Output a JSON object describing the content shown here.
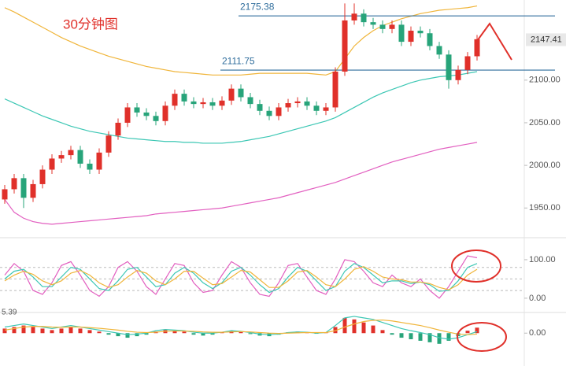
{
  "chart_data": [
    {
      "type": "candlestick",
      "title": "30分钟图",
      "up_color": "#e0302a",
      "down_color": "#27a47a",
      "ohlc": {
        "open": [
          1960,
          1972,
          1985,
          1962,
          1978,
          1995,
          2008,
          2012,
          2018,
          2002,
          1995,
          2015,
          2035,
          2050,
          2068,
          2062,
          2058,
          2052,
          2070,
          2084,
          2075,
          2072,
          2074,
          2070,
          2076,
          2090,
          2080,
          2072,
          2064,
          2058,
          2068,
          2073,
          2075,
          2070,
          2064,
          2068,
          2110,
          2170,
          2178,
          2168,
          2165,
          2160,
          2165,
          2145,
          2158,
          2155,
          2140,
          2130,
          2100,
          2112,
          2128
        ],
        "high": [
          1977,
          1990,
          1990,
          1983,
          2000,
          2013,
          2017,
          2023,
          2023,
          2007,
          2020,
          2040,
          2055,
          2073,
          2073,
          2067,
          2063,
          2075,
          2089,
          2089,
          2080,
          2079,
          2079,
          2081,
          2095,
          2095,
          2085,
          2077,
          2069,
          2073,
          2078,
          2080,
          2080,
          2075,
          2073,
          2115,
          2190,
          2190,
          2183,
          2173,
          2170,
          2170,
          2170,
          2163,
          2163,
          2160,
          2145,
          2135,
          2117,
          2133,
          2153
        ],
        "low": [
          1955,
          1967,
          1950,
          1957,
          1973,
          1990,
          2003,
          2007,
          1997,
          1990,
          1990,
          2010,
          2030,
          2045,
          2057,
          2053,
          2047,
          2047,
          2065,
          2070,
          2067,
          2067,
          2065,
          2065,
          2071,
          2075,
          2067,
          2059,
          2053,
          2053,
          2063,
          2068,
          2065,
          2059,
          2059,
          2063,
          2105,
          2165,
          2163,
          2160,
          2155,
          2155,
          2140,
          2140,
          2150,
          2135,
          2125,
          2090,
          2095,
          2107,
          2123
        ],
        "close": [
          1972,
          1985,
          1962,
          1978,
          1995,
          2008,
          2012,
          2018,
          2002,
          1995,
          2015,
          2035,
          2050,
          2068,
          2062,
          2058,
          2052,
          2070,
          2084,
          2075,
          2072,
          2074,
          2070,
          2076,
          2090,
          2080,
          2072,
          2064,
          2058,
          2068,
          2073,
          2075,
          2070,
          2064,
          2068,
          2110,
          2170,
          2178,
          2168,
          2165,
          2160,
          2165,
          2145,
          2158,
          2155,
          2140,
          2130,
          2100,
          2112,
          2128,
          2148
        ]
      },
      "series": [
        {
          "color": "#f0b53a",
          "values": [
            2185,
            2180,
            2174,
            2168,
            2162,
            2156,
            2150,
            2145,
            2140,
            2136,
            2132,
            2128,
            2125,
            2122,
            2119,
            2116,
            2114,
            2112,
            2110,
            2109,
            2108,
            2107,
            2106,
            2106,
            2106,
            2106,
            2107,
            2108,
            2108,
            2108,
            2108,
            2108,
            2108,
            2107,
            2106,
            2110,
            2125,
            2140,
            2150,
            2158,
            2164,
            2168,
            2172,
            2175,
            2178,
            2180,
            2182,
            2183,
            2184,
            2185,
            2187
          ]
        },
        {
          "color": "#3cc7b4",
          "values": [
            2078,
            2073,
            2068,
            2063,
            2058,
            2054,
            2050,
            2046,
            2043,
            2040,
            2038,
            2036,
            2034,
            2032,
            2031,
            2030,
            2029,
            2028,
            2028,
            2027,
            2027,
            2026,
            2026,
            2026,
            2027,
            2028,
            2030,
            2032,
            2034,
            2037,
            2040,
            2043,
            2046,
            2049,
            2052,
            2056,
            2062,
            2068,
            2074,
            2080,
            2085,
            2089,
            2093,
            2097,
            2100,
            2102,
            2104,
            2105,
            2106,
            2108,
            2110
          ]
        },
        {
          "color": "#e25fc0",
          "values": [
            1960,
            1945,
            1938,
            1934,
            1932,
            1931,
            1932,
            1933,
            1934,
            1935,
            1936,
            1937,
            1938,
            1939,
            1940,
            1941,
            1943,
            1944,
            1945,
            1946,
            1947,
            1948,
            1949,
            1950,
            1952,
            1954,
            1956,
            1958,
            1960,
            1962,
            1965,
            1968,
            1971,
            1974,
            1977,
            1980,
            1984,
            1988,
            1992,
            1996,
            2000,
            2004,
            2007,
            2010,
            2013,
            2016,
            2019,
            2021,
            2023,
            2025,
            2027
          ]
        }
      ],
      "levels": [
        2175.38,
        2111.75
      ],
      "level_color": "#2f6d9c",
      "last_price": 2147.41,
      "ylim": [
        1917,
        2194
      ],
      "yticks": [
        {
          "value": 2100,
          "label": "2100.00"
        },
        {
          "value": 2050,
          "label": "2050.00"
        },
        {
          "value": 2000,
          "label": "2000.00"
        },
        {
          "value": 1950,
          "label": "1950.00"
        }
      ]
    },
    {
      "type": "line",
      "series": [
        {
          "color": "#e25fc0",
          "values": [
            60,
            90,
            70,
            20,
            10,
            40,
            85,
            95,
            60,
            20,
            5,
            30,
            80,
            95,
            70,
            30,
            10,
            50,
            90,
            85,
            40,
            15,
            20,
            60,
            95,
            80,
            40,
            10,
            5,
            40,
            85,
            90,
            55,
            20,
            10,
            50,
            100,
            95,
            70,
            40,
            30,
            60,
            40,
            30,
            50,
            20,
            0,
            30,
            70,
            110,
            105
          ]
        },
        {
          "color": "#3cc7b4",
          "values": [
            50,
            70,
            75,
            55,
            30,
            30,
            55,
            80,
            75,
            50,
            25,
            20,
            45,
            75,
            80,
            55,
            30,
            35,
            65,
            80,
            65,
            40,
            25,
            40,
            70,
            80,
            60,
            35,
            15,
            25,
            55,
            80,
            70,
            45,
            20,
            30,
            70,
            90,
            80,
            60,
            40,
            45,
            45,
            38,
            42,
            35,
            18,
            20,
            45,
            80,
            90
          ]
        },
        {
          "color": "#f0b53a",
          "values": [
            45,
            60,
            70,
            62,
            45,
            35,
            45,
            65,
            72,
            60,
            40,
            28,
            35,
            55,
            72,
            65,
            45,
            35,
            50,
            70,
            70,
            52,
            35,
            38,
            55,
            72,
            68,
            48,
            28,
            28,
            45,
            68,
            72,
            55,
            35,
            30,
            50,
            75,
            82,
            70,
            55,
            50,
            48,
            42,
            42,
            38,
            28,
            22,
            35,
            60,
            75
          ]
        }
      ],
      "ref_lines": [
        80,
        50,
        20
      ],
      "ylim": [
        -33,
        151
      ],
      "yticks": [
        {
          "value": 100,
          "label": "100.00"
        },
        {
          "value": 0,
          "label": "0.00"
        }
      ]
    },
    {
      "type": "macd",
      "header": "5.39",
      "up_color": "#e0302a",
      "down_color": "#27a47a",
      "histogram": [
        1.5,
        2,
        2.5,
        2,
        1.5,
        1,
        1.5,
        2,
        1.5,
        1,
        0.5,
        -0.5,
        -1,
        -1.5,
        -1,
        -0.5,
        0.5,
        1,
        0.8,
        0.5,
        -0.5,
        -0.8,
        -0.5,
        0.3,
        0.8,
        0.5,
        -0.3,
        -0.8,
        -1,
        -0.5,
        0.3,
        0.5,
        0.3,
        -0.2,
        0.2,
        2,
        5,
        4.5,
        3.5,
        2.5,
        1,
        -0.5,
        -1.5,
        -2,
        -2.5,
        -3,
        -3.5,
        -2.5,
        -1,
        0.8,
        1.8
      ],
      "series": [
        {
          "color": "#3cc7b4",
          "values": [
            2,
            2.5,
            3,
            2.5,
            2,
            1.5,
            2,
            2.5,
            2,
            1.5,
            1,
            0.5,
            0,
            -0.5,
            -0.3,
            0,
            0.8,
            1.2,
            1,
            0.8,
            0.3,
            0,
            0,
            0.3,
            0.8,
            0.6,
            0.2,
            -0.3,
            -0.5,
            -0.3,
            0.2,
            0.4,
            0.3,
            0,
            0.2,
            2.5,
            5,
            5.5,
            5,
            4.5,
            3.5,
            2.5,
            1.5,
            0.8,
            0.2,
            -0.5,
            -1.5,
            -2,
            -1.5,
            -0.5,
            0.5
          ]
        },
        {
          "color": "#f0b53a",
          "values": [
            1,
            1.5,
            2,
            2.2,
            2.2,
            2,
            1.9,
            2,
            2,
            1.8,
            1.6,
            1.3,
            1,
            0.6,
            0.3,
            0.2,
            0.3,
            0.6,
            0.7,
            0.7,
            0.6,
            0.4,
            0.3,
            0.3,
            0.4,
            0.5,
            0.4,
            0.2,
            0,
            -0.1,
            0,
            0.1,
            0.2,
            0.2,
            0.2,
            0.8,
            2,
            3,
            3.8,
            4.2,
            4.3,
            4,
            3.5,
            3,
            2.5,
            1.8,
            1,
            0.3,
            -0.3,
            -0.5,
            -0.3
          ]
        }
      ],
      "ylim": [
        -10,
        6
      ],
      "yticks": [
        {
          "value": 0,
          "label": "0.00"
        }
      ]
    }
  ]
}
